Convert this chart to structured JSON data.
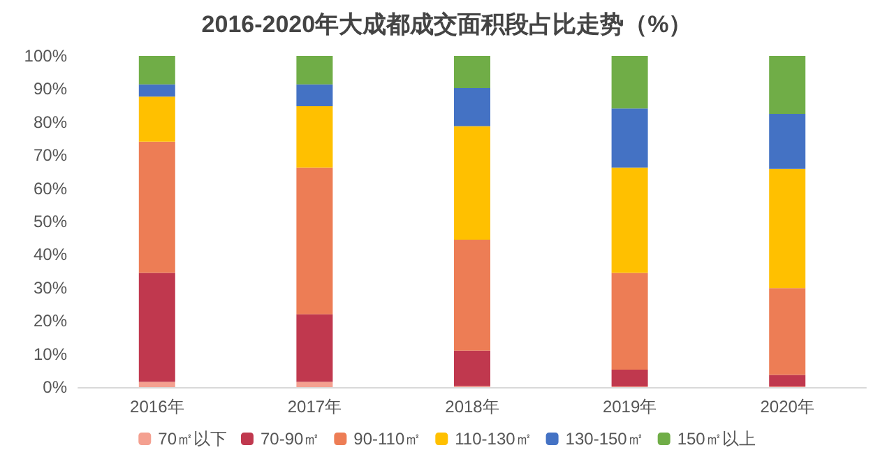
{
  "chart_data": {
    "type": "bar",
    "title": "2016-2020年大成都成交面积段占比走势（%）",
    "categories": [
      "2016年",
      "2017年",
      "2018年",
      "2019年",
      "2020年"
    ],
    "stacked": true,
    "series": [
      {
        "name": "70㎡以下",
        "color": "#f4a090",
        "values": [
          1.6,
          1.6,
          0.3,
          0.2,
          0.2
        ]
      },
      {
        "name": "70-90㎡",
        "color": "#c0384e",
        "values": [
          32.9,
          20.4,
          10.7,
          5.1,
          3.5
        ]
      },
      {
        "name": "90-110㎡",
        "color": "#ed7d55",
        "values": [
          39.6,
          44.3,
          33.5,
          29.2,
          26.2
        ]
      },
      {
        "name": "110-130㎡",
        "color": "#ffc000",
        "values": [
          13.6,
          18.5,
          34.3,
          31.8,
          36.0
        ]
      },
      {
        "name": "130-150㎡",
        "color": "#4472c4",
        "values": [
          3.7,
          6.6,
          11.5,
          17.8,
          16.6
        ]
      },
      {
        "name": "150㎡以上",
        "color": "#70ad47",
        "values": [
          8.6,
          8.6,
          9.7,
          15.9,
          17.5
        ]
      }
    ],
    "ylim": [
      0,
      100
    ],
    "yticks": [
      {
        "value": 0,
        "label": "0%"
      },
      {
        "value": 10,
        "label": "10%"
      },
      {
        "value": 20,
        "label": "20%"
      },
      {
        "value": 30,
        "label": "30%"
      },
      {
        "value": 40,
        "label": "40%"
      },
      {
        "value": 50,
        "label": "50%"
      },
      {
        "value": 60,
        "label": "60%"
      },
      {
        "value": 70,
        "label": "70%"
      },
      {
        "value": 80,
        "label": "80%"
      },
      {
        "value": 90,
        "label": "90%"
      },
      {
        "value": 100,
        "label": "100%"
      }
    ],
    "grid": false,
    "legend": "bottom"
  }
}
